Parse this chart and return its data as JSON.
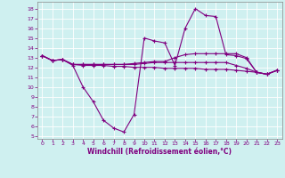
{
  "title": "",
  "xlabel": "Windchill (Refroidissement éolien,°C)",
  "background_color": "#cff0f0",
  "grid_color": "#ffffff",
  "line_color": "#800080",
  "xlim": [
    -0.5,
    23.5
  ],
  "ylim": [
    4.7,
    18.7
  ],
  "yticks": [
    5,
    6,
    7,
    8,
    9,
    10,
    11,
    12,
    13,
    14,
    15,
    16,
    17,
    18
  ],
  "xticks": [
    0,
    1,
    2,
    3,
    4,
    5,
    6,
    7,
    8,
    9,
    10,
    11,
    12,
    13,
    14,
    15,
    16,
    17,
    18,
    19,
    20,
    21,
    22,
    23
  ],
  "hours": [
    0,
    1,
    2,
    3,
    4,
    5,
    6,
    7,
    8,
    9,
    10,
    11,
    12,
    13,
    14,
    15,
    16,
    17,
    18,
    19,
    20,
    21,
    22,
    23
  ],
  "line1": [
    13.2,
    12.7,
    12.8,
    12.2,
    10.0,
    8.5,
    6.6,
    5.8,
    5.4,
    7.2,
    15.0,
    14.7,
    14.5,
    12.2,
    16.0,
    18.0,
    17.3,
    17.2,
    13.3,
    13.2,
    12.9,
    11.5,
    11.3,
    11.7
  ],
  "line2": [
    13.2,
    12.7,
    12.8,
    12.3,
    12.3,
    12.3,
    12.3,
    12.3,
    12.3,
    12.4,
    12.5,
    12.6,
    12.6,
    13.0,
    13.3,
    13.4,
    13.4,
    13.4,
    13.4,
    13.4,
    13.0,
    11.5,
    11.3,
    11.7
  ],
  "line3": [
    13.2,
    12.7,
    12.8,
    12.3,
    12.3,
    12.3,
    12.3,
    12.3,
    12.3,
    12.3,
    12.4,
    12.5,
    12.5,
    12.5,
    12.5,
    12.5,
    12.5,
    12.5,
    12.5,
    12.2,
    11.9,
    11.5,
    11.3,
    11.7
  ],
  "line4": [
    13.2,
    12.7,
    12.8,
    12.3,
    12.2,
    12.2,
    12.2,
    12.1,
    12.1,
    12.0,
    12.0,
    12.0,
    11.9,
    11.9,
    11.9,
    11.9,
    11.8,
    11.8,
    11.8,
    11.7,
    11.6,
    11.5,
    11.3,
    11.7
  ]
}
